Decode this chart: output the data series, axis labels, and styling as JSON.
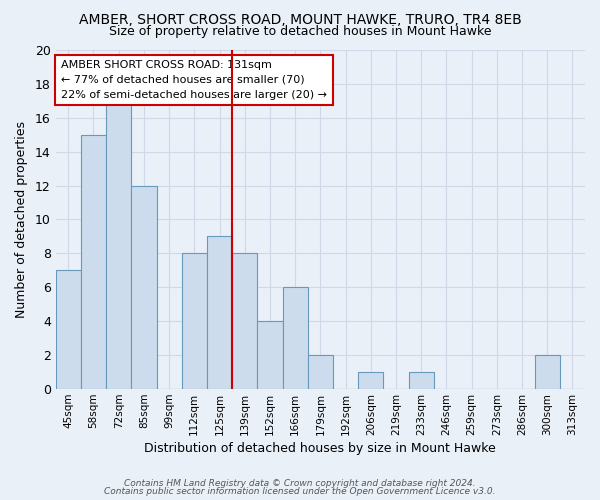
{
  "title": "AMBER, SHORT CROSS ROAD, MOUNT HAWKE, TRURO, TR4 8EB",
  "subtitle": "Size of property relative to detached houses in Mount Hawke",
  "xlabel": "Distribution of detached houses by size in Mount Hawke",
  "ylabel": "Number of detached properties",
  "categories": [
    "45sqm",
    "58sqm",
    "72sqm",
    "85sqm",
    "99sqm",
    "112sqm",
    "125sqm",
    "139sqm",
    "152sqm",
    "166sqm",
    "179sqm",
    "192sqm",
    "206sqm",
    "219sqm",
    "233sqm",
    "246sqm",
    "259sqm",
    "273sqm",
    "286sqm",
    "300sqm",
    "313sqm"
  ],
  "values": [
    7,
    15,
    17,
    12,
    0,
    8,
    9,
    8,
    4,
    6,
    2,
    0,
    1,
    0,
    1,
    0,
    0,
    0,
    0,
    2,
    0
  ],
  "bar_color": "#ccdcec",
  "bar_edge_color": "#6699bb",
  "grid_color": "#d0d8e8",
  "background_color": "#eaf0f8",
  "vline_x": 6.5,
  "vline_color": "#cc0000",
  "annotation_text": "AMBER SHORT CROSS ROAD: 131sqm\n← 77% of detached houses are smaller (70)\n22% of semi-detached houses are larger (20) →",
  "annotation_box_facecolor": "#ffffff",
  "annotation_box_edgecolor": "#cc0000",
  "ylim": [
    0,
    20
  ],
  "yticks": [
    0,
    2,
    4,
    6,
    8,
    10,
    12,
    14,
    16,
    18,
    20
  ],
  "title_fontsize": 10,
  "subtitle_fontsize": 9,
  "ylabel_fontsize": 9,
  "xlabel_fontsize": 9,
  "footer1": "Contains HM Land Registry data © Crown copyright and database right 2024.",
  "footer2": "Contains public sector information licensed under the Open Government Licence v3.0."
}
